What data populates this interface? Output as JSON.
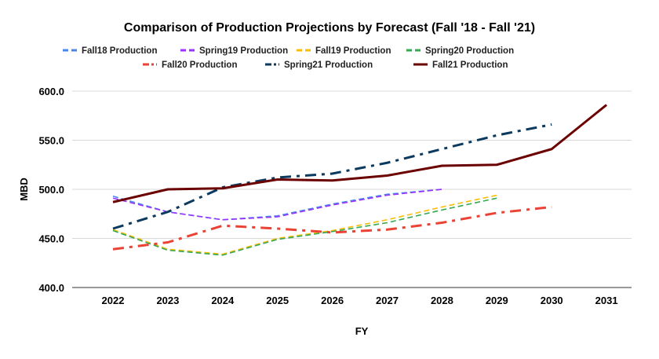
{
  "chart_data": {
    "type": "line",
    "title": "Comparison of Production Projections by Forecast (Fall '18 - Fall '21)",
    "xlabel": "FY",
    "ylabel": "MBD",
    "categories": [
      "2022",
      "2023",
      "2024",
      "2025",
      "2026",
      "2027",
      "2028",
      "2029",
      "2030",
      "2031"
    ],
    "ylim": [
      400,
      600
    ],
    "yticks": [
      "400.0",
      "450.0",
      "500.0",
      "550.0",
      "600.0"
    ],
    "grid": true,
    "legend": "top",
    "series": [
      {
        "name": "Fall18 Production",
        "color": "#4a86e8",
        "dash": "dashed",
        "values": [
          493,
          477,
          469,
          473,
          485,
          495,
          500,
          null,
          null,
          null
        ]
      },
      {
        "name": "Spring19 Production",
        "color": "#9933ff",
        "dash": "dashed",
        "values": [
          491,
          477,
          469,
          472,
          484,
          494,
          500,
          null,
          null,
          null
        ]
      },
      {
        "name": "Fall19 Production",
        "color": "#fbbc04",
        "dash": "dashed",
        "values": [
          459,
          439,
          434,
          450,
          458,
          469,
          482,
          494,
          null,
          null
        ]
      },
      {
        "name": "Spring20 Production",
        "color": "#34a853",
        "dash": "dashed",
        "values": [
          458,
          438,
          433,
          449,
          457,
          466,
          479,
          491,
          null,
          null
        ]
      },
      {
        "name": "Fall20 Production",
        "color": "#ea4335",
        "dash": "dashdot",
        "values": [
          439,
          446,
          463,
          460,
          456,
          459,
          466,
          476,
          482,
          null
        ]
      },
      {
        "name": "Spring21 Production",
        "color": "#0b3a5e",
        "dash": "dashdot",
        "values": [
          460,
          477,
          502,
          512,
          516,
          527,
          541,
          555,
          566,
          null
        ]
      },
      {
        "name": "Fall21 Production",
        "color": "#6b0000",
        "dash": "solid",
        "values": [
          487,
          500,
          501,
          510,
          509,
          514,
          524,
          525,
          541,
          586
        ]
      }
    ]
  }
}
